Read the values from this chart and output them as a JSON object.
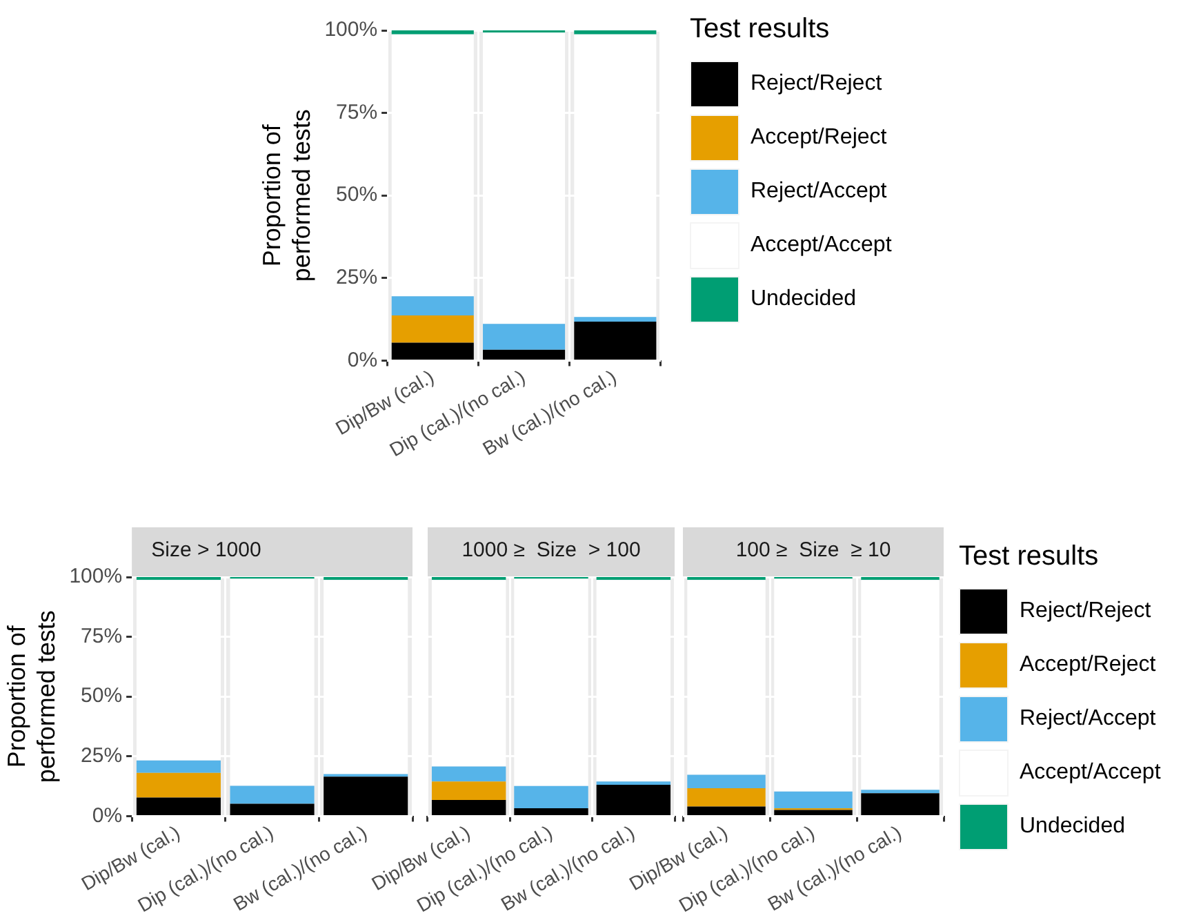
{
  "chart_data": [
    {
      "type": "bar",
      "stacked": true,
      "ylabel": "Proportion of performed tests",
      "legend_title": "Test results",
      "legend": "right",
      "grid": true,
      "categories": [
        "Dip/Bw (cal.)",
        "Dip (cal.)/(no cal.)",
        "Bw (cal.)/(no cal.)"
      ],
      "ylim": [
        0,
        100
      ],
      "yticks": [
        {
          "value": 0,
          "label": "0%"
        },
        {
          "value": 25,
          "label": "25%"
        },
        {
          "value": 50,
          "label": "50%"
        },
        {
          "value": 75,
          "label": "75%"
        },
        {
          "value": 100,
          "label": "100%"
        }
      ],
      "series": [
        {
          "name": "Reject/Reject",
          "color": "#000000",
          "values": [
            5.4,
            3.3,
            11.8
          ]
        },
        {
          "name": "Accept/Reject",
          "color": "#e69f00",
          "values": [
            8.3,
            0,
            0
          ]
        },
        {
          "name": "Reject/Accept",
          "color": "#56b4e9",
          "values": [
            5.8,
            7.8,
            1.4
          ]
        },
        {
          "name": "Accept/Accept",
          "color": "#ffffff",
          "values": [
            79.3,
            88.2,
            85.6
          ]
        },
        {
          "name": "Undecided",
          "color": "#009e73",
          "values": [
            1.2,
            0.7,
            1.2
          ]
        }
      ]
    },
    {
      "type": "bar",
      "stacked": true,
      "title": "Size > 1000",
      "ylabel": "Proportion of performed tests",
      "grid": true,
      "categories": [
        "Dip/Bw (cal.)",
        "Dip (cal.)/(no cal.)",
        "Bw (cal.)/(no cal.)"
      ],
      "ylim": [
        0,
        100
      ],
      "yticks": [
        {
          "value": 0,
          "label": "0%"
        },
        {
          "value": 25,
          "label": "25%"
        },
        {
          "value": 50,
          "label": "50%"
        },
        {
          "value": 75,
          "label": "75%"
        },
        {
          "value": 100,
          "label": "100%"
        }
      ],
      "series": [
        {
          "color": "#000000",
          "values": [
            7.8,
            5.2,
            16.5
          ]
        },
        {
          "color": "#e69f00",
          "values": [
            10.3,
            0,
            0
          ]
        },
        {
          "color": "#56b4e9",
          "values": [
            5.2,
            7.5,
            1.1
          ]
        },
        {
          "color": "#ffffff",
          "values": [
            75.5,
            86.6,
            81.2
          ]
        },
        {
          "color": "#009e73",
          "values": [
            1.2,
            0.7,
            1.2
          ]
        }
      ]
    },
    {
      "type": "bar",
      "stacked": true,
      "title": "1000 ≥  Size  > 100",
      "grid": true,
      "tick_labels": "x",
      "categories": [
        "Dip/Bw (cal.)",
        "Dip (cal.)/(no cal.)",
        "Bw (cal.)/(no cal.)"
      ],
      "ylim": [
        0,
        100
      ],
      "yticks": [
        0,
        25,
        50,
        75,
        100
      ],
      "series": [
        {
          "color": "#000000",
          "values": [
            6.8,
            3.3,
            13.1
          ]
        },
        {
          "color": "#e69f00",
          "values": [
            7.7,
            0,
            0
          ]
        },
        {
          "color": "#56b4e9",
          "values": [
            6.3,
            9.3,
            1.4
          ]
        },
        {
          "color": "#ffffff",
          "values": [
            78.0,
            86.7,
            84.3
          ]
        },
        {
          "color": "#009e73",
          "values": [
            1.2,
            0.7,
            1.2
          ]
        }
      ]
    },
    {
      "type": "bar",
      "stacked": true,
      "title": "100 ≥  Size  ≥ 10",
      "legend_title": "Test results",
      "legend": "right",
      "grid": true,
      "tick_labels": "x",
      "categories": [
        "Dip/Bw (cal.)",
        "Dip (cal.)/(no cal.)",
        "Bw (cal.)/(no cal.)"
      ],
      "ylim": [
        0,
        100
      ],
      "yticks": [
        0,
        25,
        50,
        75,
        100
      ],
      "series": [
        {
          "name": "Reject/Reject",
          "color": "#000000",
          "values": [
            4.0,
            2.6,
            9.6
          ]
        },
        {
          "name": "Accept/Reject",
          "color": "#e69f00",
          "values": [
            7.7,
            0.7,
            0
          ]
        },
        {
          "name": "Reject/Accept",
          "color": "#56b4e9",
          "values": [
            5.6,
            7.0,
            1.4
          ]
        },
        {
          "name": "Accept/Accept",
          "color": "#ffffff",
          "values": [
            81.5,
            89.0,
            87.8
          ]
        },
        {
          "name": "Undecided",
          "color": "#009e73",
          "values": [
            1.2,
            0.7,
            1.2
          ]
        }
      ]
    }
  ]
}
